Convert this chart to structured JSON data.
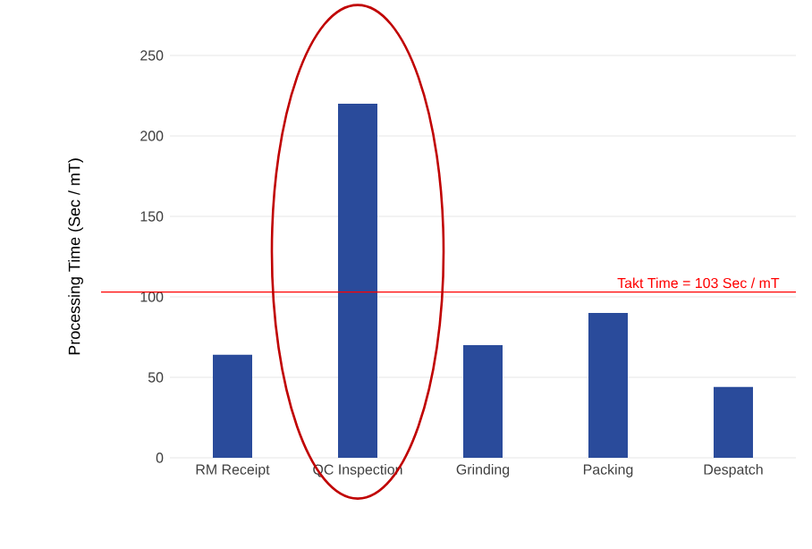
{
  "chart_data": {
    "type": "bar",
    "ylabel": "Processing Time (Sec / mT)",
    "categories": [
      "RM Receipt",
      "QC Inspection",
      "Grinding",
      "Packing",
      "Despatch"
    ],
    "values": [
      64,
      220,
      70,
      90,
      44
    ],
    "color": "#2a4b9b",
    "ylim": [
      0,
      250
    ],
    "yticks": [
      0,
      50,
      100,
      150,
      200,
      250
    ],
    "grid": "y",
    "ref_lines": [
      {
        "axis": "y",
        "value": 103,
        "label": "Takt Time = 103 Sec / mT",
        "color": "#ff0000"
      }
    ]
  }
}
